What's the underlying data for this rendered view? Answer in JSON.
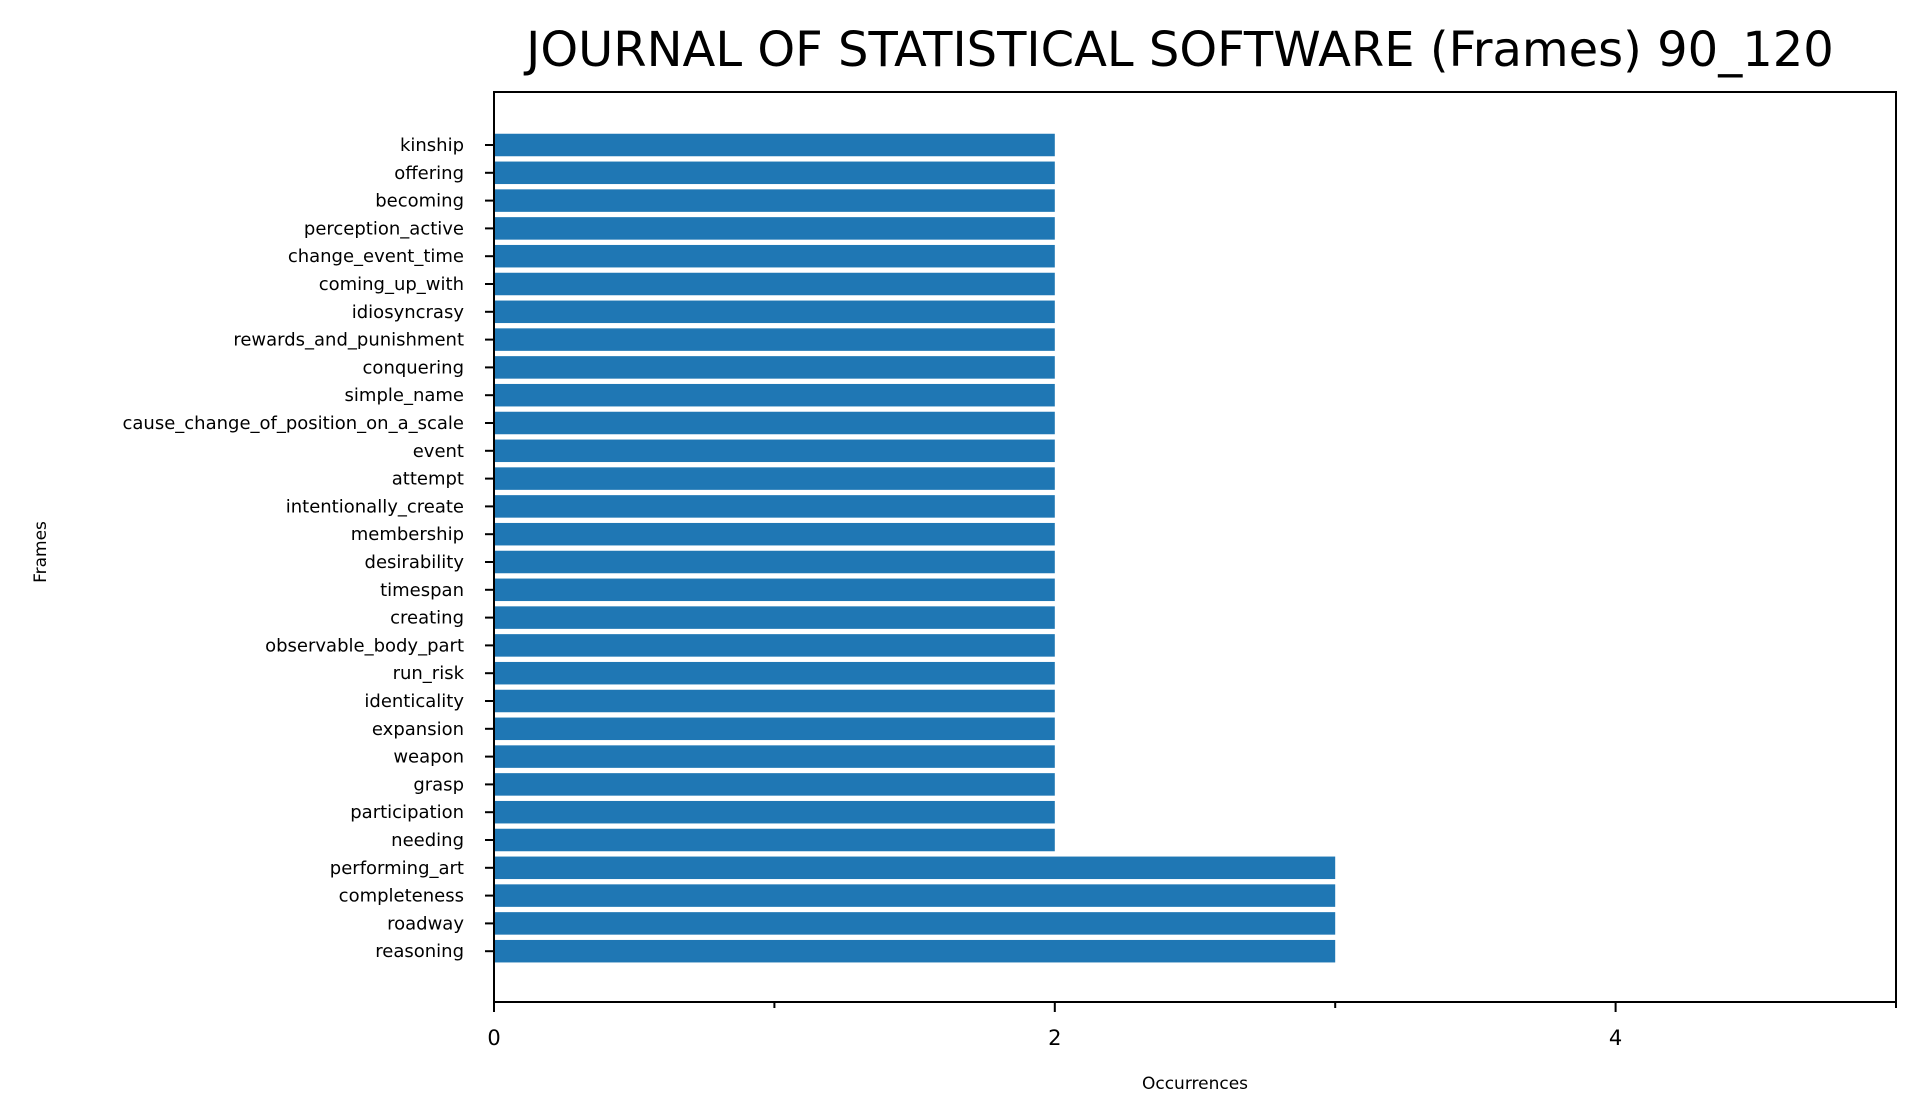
{
  "chart_data": {
    "type": "bar",
    "orientation": "horizontal",
    "title": "JOURNAL OF STATISTICAL SOFTWARE (Frames) 90_120",
    "xlabel": "Occurrences",
    "ylabel": "Frames",
    "xlim": [
      0,
      5
    ],
    "xticks": [
      0,
      2,
      4
    ],
    "x_minor_ticks": [
      1,
      3,
      5
    ],
    "grid": false,
    "bar_color": "#1f77b4",
    "categories": [
      "kinship",
      "offering",
      "becoming",
      "perception_active",
      "change_event_time",
      "coming_up_with",
      "idiosyncrasy",
      "rewards_and_punishment",
      "conquering",
      "simple_name",
      "cause_change_of_position_on_a_scale",
      "event",
      "attempt",
      "intentionally_create",
      "membership",
      "desirability",
      "timespan",
      "creating",
      "observable_body_part",
      "run_risk",
      "identicality",
      "expansion",
      "weapon",
      "grasp",
      "participation",
      "needing",
      "performing_art",
      "completeness",
      "roadway",
      "reasoning"
    ],
    "values": [
      2,
      2,
      2,
      2,
      2,
      2,
      2,
      2,
      2,
      2,
      2,
      2,
      2,
      2,
      2,
      2,
      2,
      2,
      2,
      2,
      2,
      2,
      2,
      2,
      2,
      2,
      3,
      3,
      3,
      3
    ]
  }
}
